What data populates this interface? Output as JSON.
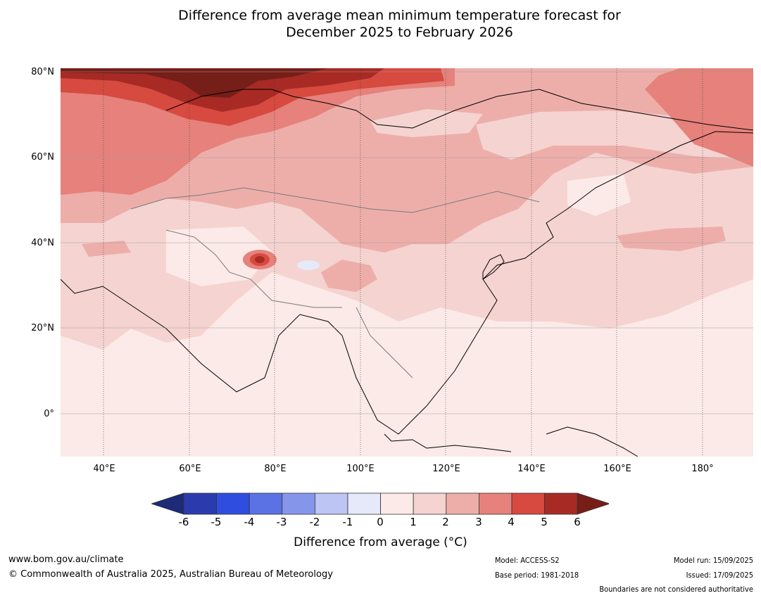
{
  "title_line1": "Difference from average mean minimum temperature forecast for",
  "title_line2": "December 2025 to February 2026",
  "map": {
    "lat_labels": [
      "80°N",
      "60°N",
      "40°N",
      "20°N",
      "0°"
    ],
    "lon_labels": [
      "40°E",
      "60°E",
      "80°E",
      "100°E",
      "120°E",
      "140°E",
      "160°E",
      "180°"
    ],
    "extent": {
      "lon": [
        30,
        192
      ],
      "lat": [
        -10,
        80
      ]
    }
  },
  "colorbar": {
    "ticks": [
      "-6",
      "-5",
      "-4",
      "-3",
      "-2",
      "-1",
      "0",
      "1",
      "2",
      "3",
      "4",
      "5",
      "6"
    ],
    "colors": [
      "#1c2a78",
      "#2a3cad",
      "#2f4ee0",
      "#5a72e4",
      "#8596ea",
      "#bcc5f3",
      "#e6e9fa",
      "#fbeae8",
      "#f5d3d1",
      "#edaeaa",
      "#e6817b",
      "#d64a40",
      "#a82a24",
      "#761e18"
    ],
    "label": "Difference from average (°C)"
  },
  "footer": {
    "url": "www.bom.gov.au/climate",
    "copyright": "© Commonwealth of Australia 2025, Australian Bureau of Meteorology",
    "model": "Model: ACCESS-S2",
    "base_period": "Base period: 1981-2018",
    "model_run": "Model run: 15/09/2025",
    "issued": "Issued: 17/09/2025",
    "disclaimer": "Boundaries are not considered authoritative"
  }
}
